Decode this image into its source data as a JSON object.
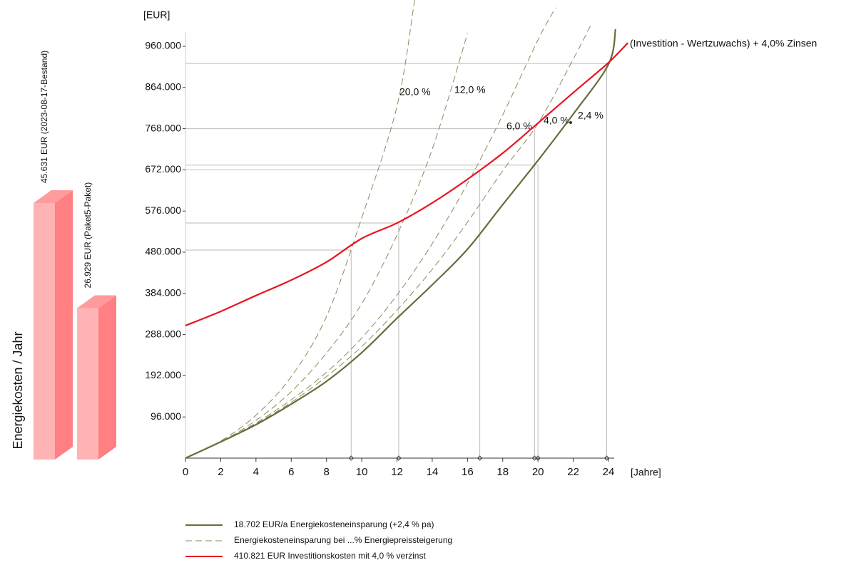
{
  "chart_data": {
    "type": "line",
    "y_unit": "[EUR]",
    "x_unit": "[Jahre]",
    "annotation": "(Investition - Wertzuwachs) + 4,0% Zinsen",
    "xlim": [
      0,
      24
    ],
    "ylim": [
      0,
      960000
    ],
    "xticks": [
      0,
      2,
      4,
      6,
      8,
      10,
      12,
      14,
      16,
      18,
      20,
      22,
      24
    ],
    "yticks": [
      {
        "value": 96000,
        "label": "96.000"
      },
      {
        "value": 192000,
        "label": "192.000"
      },
      {
        "value": 288000,
        "label": "288.000"
      },
      {
        "value": 384000,
        "label": "384.000"
      },
      {
        "value": 480000,
        "label": "480.000"
      },
      {
        "value": 576000,
        "label": "576.000"
      },
      {
        "value": 672000,
        "label": "672.000"
      },
      {
        "value": 768000,
        "label": "768.000"
      },
      {
        "value": 864000,
        "label": "864.000"
      },
      {
        "value": 960000,
        "label": "960.000"
      }
    ],
    "series": [
      {
        "name": "18.702 EUR/a Energiekosteneinsparung (+2,4 % pa)",
        "label": "2,4 %",
        "color": "#6b6b3a",
        "dash": false,
        "x": [
          0,
          2,
          4,
          6,
          8,
          10,
          12,
          14,
          16,
          18,
          20,
          22,
          24,
          24.4
        ],
        "values": [
          0,
          38000,
          78000,
          126000,
          179000,
          246000,
          326000,
          404000,
          487000,
          591000,
          694000,
          802000,
          918000,
          1000000
        ]
      },
      {
        "name": "410.821 EUR Investitionskosten mit 4,0 % verzinst",
        "color": "#e8141e",
        "dash": false,
        "x": [
          0,
          2,
          4,
          6,
          8,
          10,
          12,
          14,
          16,
          18,
          20,
          22,
          24,
          25.1
        ],
        "values": [
          309000,
          342000,
          379000,
          415000,
          457000,
          512000,
          548000,
          595000,
          650000,
          711000,
          781000,
          852000,
          922000,
          968000
        ]
      }
    ],
    "dashed_series": {
      "name": "Energiekosteneinsparung bei ...% Energiepreissteigerung",
      "color": "#8a8a5a",
      "curves": [
        {
          "label": "20,0 %",
          "x": [
            0,
            2,
            4,
            6,
            8,
            10,
            12,
            13
          ],
          "values": [
            0,
            40000,
            100000,
            190000,
            330000,
            560000,
            820000,
            1068000
          ]
        },
        {
          "label": "12,0 %",
          "x": [
            0,
            2,
            4,
            6,
            8,
            10,
            12,
            14,
            16
          ],
          "values": [
            0,
            38000,
            88000,
            155000,
            245000,
            360000,
            520000,
            720000,
            990000
          ]
        },
        {
          "label": "6,0 %",
          "x": [
            0,
            2,
            4,
            6,
            8,
            10,
            12,
            14,
            16,
            18,
            20,
            21
          ],
          "values": [
            0,
            38000,
            82000,
            136000,
            200000,
            280000,
            380000,
            500000,
            640000,
            800000,
            975000,
            1050000
          ]
        },
        {
          "label": "4,0 %",
          "x": [
            0,
            2,
            4,
            6,
            8,
            10,
            12,
            14,
            16,
            18,
            20,
            22,
            23
          ],
          "values": [
            0,
            38000,
            80000,
            130000,
            190000,
            260000,
            345000,
            440000,
            550000,
            670000,
            780000,
            930000,
            1010000
          ]
        }
      ]
    },
    "intersections": [
      {
        "x": 9.4,
        "y": 485000
      },
      {
        "x": 12.1,
        "y": 548000
      },
      {
        "x": 16.7,
        "y": 672000
      },
      {
        "x": 19.8,
        "y": 768000
      },
      {
        "x": 20.0,
        "y": 683000
      },
      {
        "x": 23.9,
        "y": 920000
      }
    ],
    "bars": {
      "title": "Energiekosten / Jahr",
      "values": [
        45631,
        26929
      ],
      "value_labels": [
        "45.631 EUR (2023-08-17-Bestand)",
        "26.929 EUR (Paket5-Paket)"
      ],
      "color": "#ffb3b5",
      "side_color": "#ff7f82",
      "top_color": "#ff9a9d"
    }
  }
}
